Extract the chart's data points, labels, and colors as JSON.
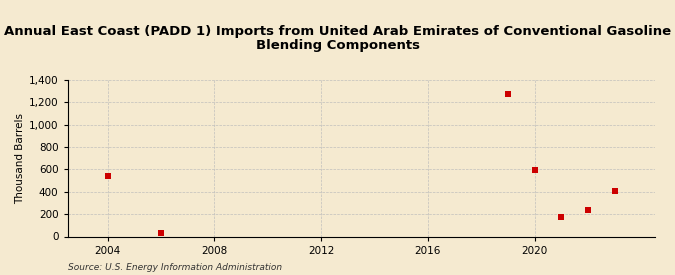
{
  "title": "Annual East Coast (PADD 1) Imports from United Arab Emirates of Conventional Gasoline\nBlending Components",
  "ylabel": "Thousand Barrels",
  "source": "Source: U.S. Energy Information Administration",
  "background_color": "#f5ead0",
  "plot_bg_color": "#f5ead0",
  "title_bg_color": "#ffffff",
  "data_x": [
    2004,
    2006,
    2019,
    2020,
    2021,
    2022,
    2023
  ],
  "data_y": [
    540,
    30,
    1270,
    590,
    175,
    235,
    410
  ],
  "marker_color": "#cc0000",
  "marker_size": 4,
  "xlim": [
    2002.5,
    2024.5
  ],
  "ylim": [
    0,
    1400
  ],
  "xticks": [
    2004,
    2008,
    2012,
    2016,
    2020
  ],
  "yticks": [
    0,
    200,
    400,
    600,
    800,
    1000,
    1200,
    1400
  ],
  "grid_color": "#bbbbbb",
  "title_fontsize": 9.5,
  "axis_label_fontsize": 7.5,
  "tick_fontsize": 7.5,
  "source_fontsize": 6.5
}
